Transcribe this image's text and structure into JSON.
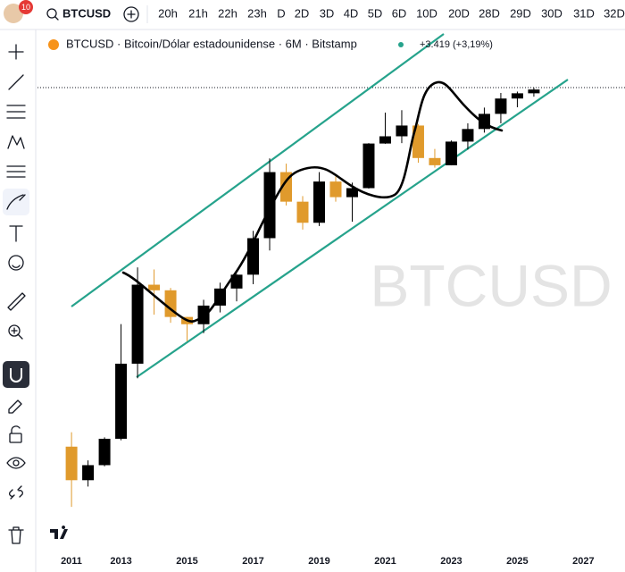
{
  "toolbar": {
    "badge": "10",
    "symbol": "BTCUSD",
    "intervals": [
      "20h",
      "21h",
      "22h",
      "23h",
      "D",
      "2D",
      "3D",
      "4D",
      "5D",
      "6D",
      "10D",
      "20D",
      "28D",
      "29D",
      "30D",
      "31D",
      "32D"
    ]
  },
  "legend": {
    "title": "BTCUSD · Bitcoin/Dólar estadounidense · 6M · Bitstamp",
    "change": "+3.419 (+3,19%)"
  },
  "watermark": "BTCUSD",
  "chart_data": {
    "type": "candlestick",
    "log_y": true,
    "up_color": "#000000",
    "down_color": "#e09a2c",
    "x": [
      2011.5,
      2012,
      2012.5,
      2013,
      2013.5,
      2014,
      2014.5,
      2015,
      2015.5,
      2016,
      2016.5,
      2017,
      2017.5,
      2018,
      2018.5,
      2019,
      2019.5,
      2020,
      2020.5,
      2021,
      2021.5,
      2022,
      2022.5,
      2023,
      2023.5,
      2024,
      2024.5,
      2025,
      2025.5
    ],
    "open": [
      11,
      4.6,
      6.8,
      13.5,
      95,
      740,
      640,
      320,
      265,
      430,
      670,
      960,
      2480,
      13800,
      6400,
      3700,
      10800,
      7200,
      9100,
      29000,
      35000,
      46300,
      19900,
      16500,
      30500,
      42300,
      62700,
      93400,
      107000
    ],
    "high": [
      16,
      7.7,
      14,
      266,
      1160,
      1100,
      680,
      320,
      500,
      780,
      980,
      3000,
      19700,
      17200,
      7400,
      13800,
      12300,
      10500,
      29300,
      64800,
      69000,
      48200,
      25200,
      31400,
      49000,
      73800,
      108000,
      111900,
      124000
    ],
    "low": [
      2.3,
      3.9,
      6.6,
      13,
      65,
      340,
      275,
      170,
      210,
      360,
      480,
      750,
      1800,
      5800,
      3100,
      3400,
      6400,
      3800,
      9000,
      28800,
      29300,
      17600,
      15500,
      16500,
      24800,
      38500,
      49000,
      74400,
      98000
    ],
    "close": [
      4.6,
      6.8,
      13.5,
      95,
      740,
      640,
      320,
      265,
      430,
      670,
      960,
      2480,
      13800,
      6400,
      3700,
      10800,
      7200,
      9100,
      29000,
      35000,
      46300,
      19900,
      16500,
      30500,
      42300,
      62700,
      93400,
      107000,
      118000
    ],
    "xlim": [
      2010.47,
      2028.26
    ],
    "xticks": [
      2011,
      2013,
      2015,
      2017,
      2019,
      2021,
      2023,
      2025,
      2027
    ],
    "ylim": [
      1,
      500000
    ]
  }
}
